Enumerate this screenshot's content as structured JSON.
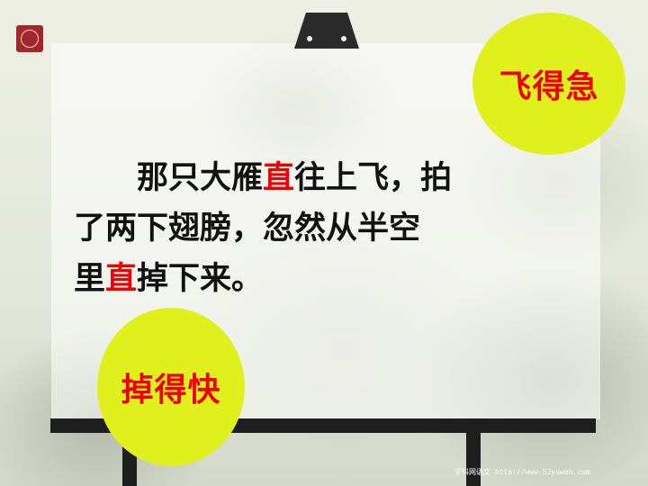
{
  "slide": {
    "circle_top_label": "飞得急",
    "circle_bottom_label": "掉得快",
    "passage": {
      "line1_a": "那只大雁",
      "line1_hl": "直",
      "line1_b": "往上飞，拍",
      "line2": "了两下翅膀，忽然从半空",
      "line3_a": "里",
      "line3_hl": "直",
      "line3_b": "掉下来。"
    },
    "footer_watermark": "学科网语文 http://www.52yuwen.com"
  },
  "colors": {
    "highlight_red": "#f00000",
    "circle_yellow": "#e0f01d",
    "logo_red": "#a3262b",
    "board_frame": "#1e1e1e"
  },
  "icons": {
    "logo": "seal-logo-icon",
    "clip": "board-clip-icon"
  }
}
